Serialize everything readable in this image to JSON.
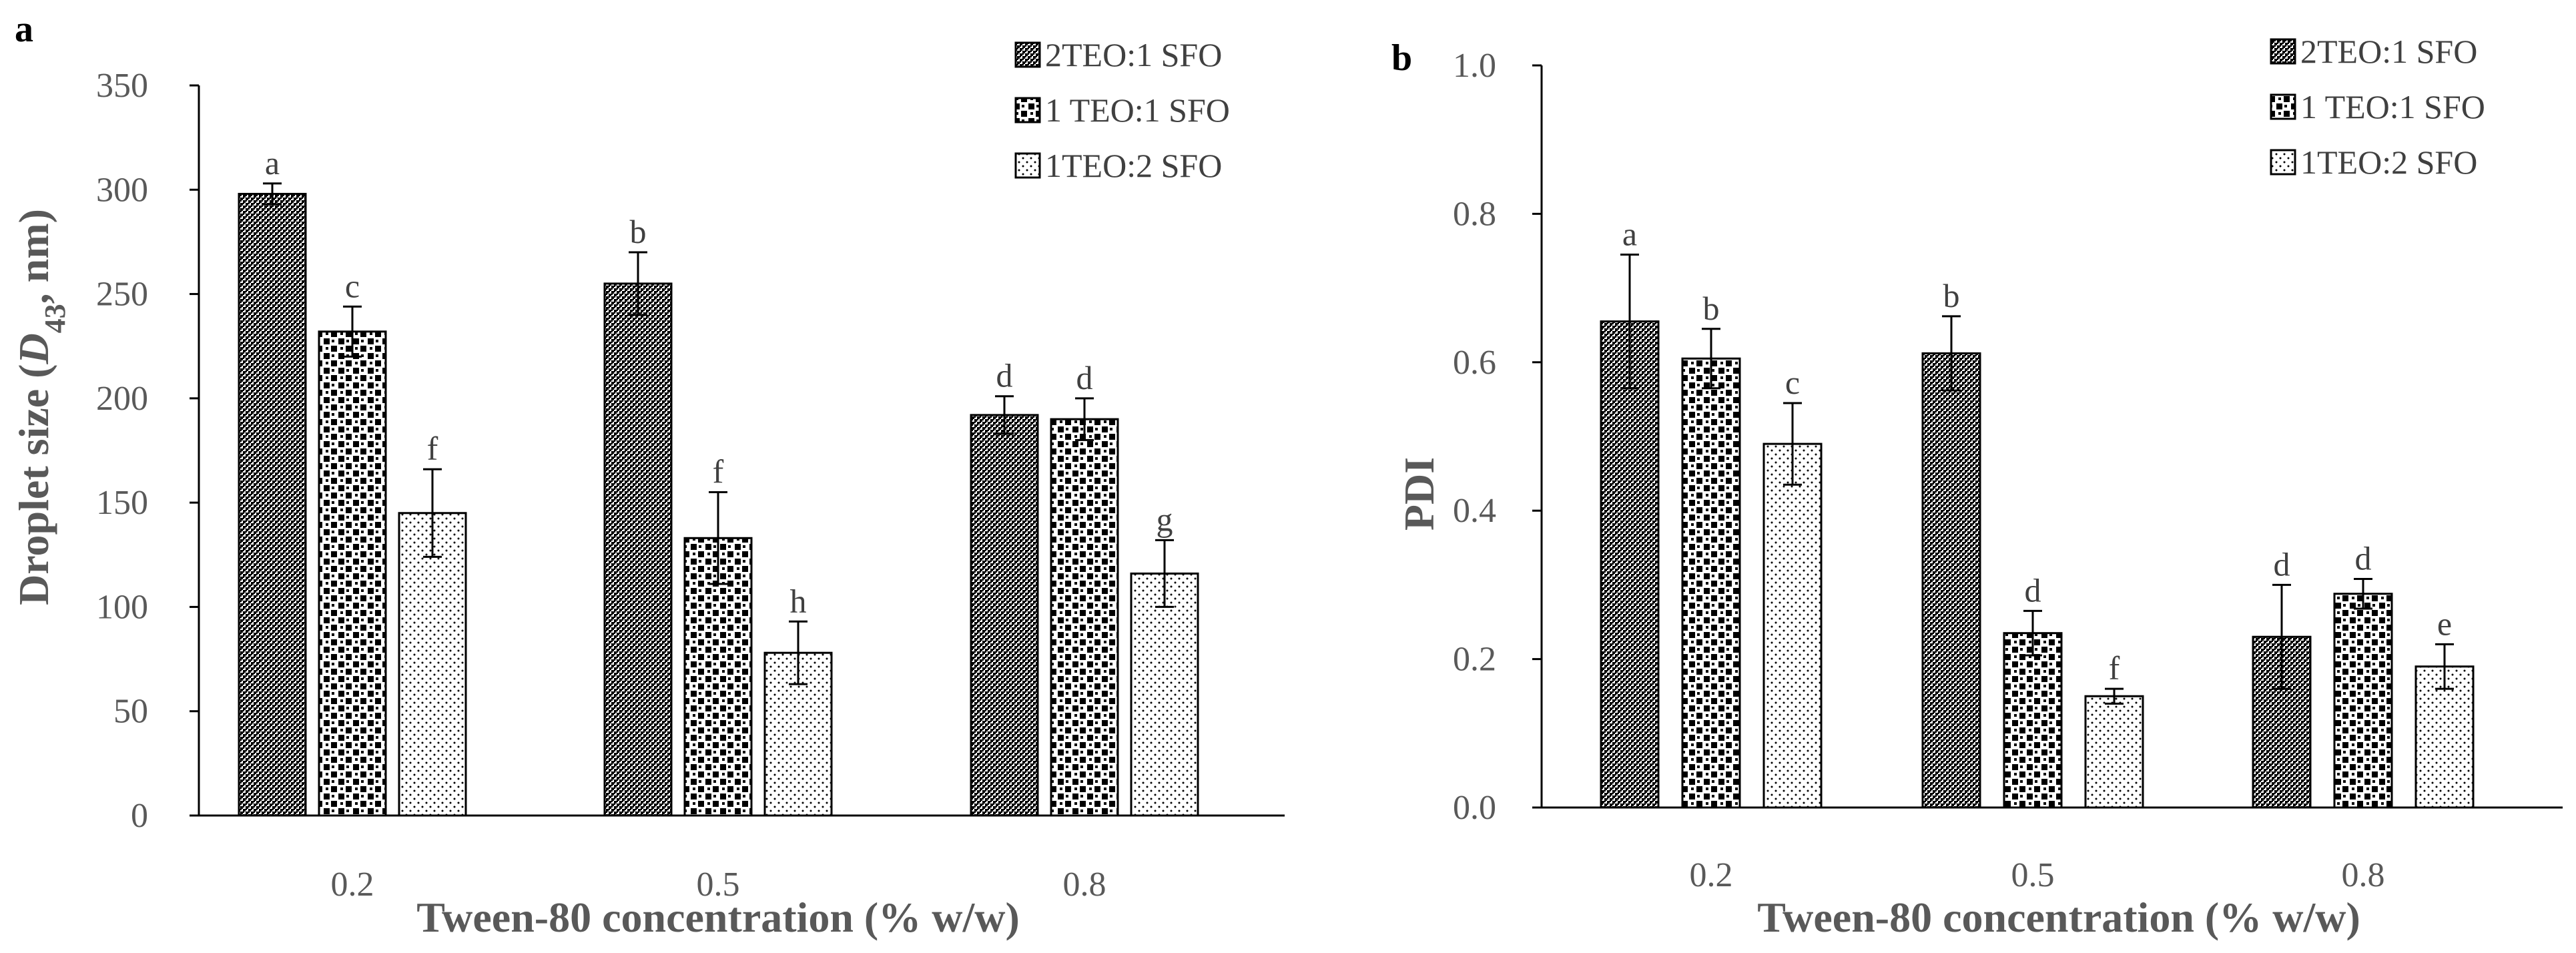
{
  "figure": {
    "x_title": "Tween-80 concentration (% w/w)"
  },
  "chart_data": [
    {
      "type": "bar",
      "panel_label": "a",
      "title": "",
      "xlabel": "Tween-80 concentration (% w/w)",
      "ylabel_prefix": "Droplet size (",
      "ylabel_symbol": "D",
      "ylabel_subscript": "43",
      "ylabel_suffix": ", nm)",
      "ylim": [
        0,
        350
      ],
      "yticks": [
        0,
        50,
        100,
        150,
        200,
        250,
        300,
        350
      ],
      "ytick_labels": [
        "0",
        "50",
        "100",
        "150",
        "200",
        "250",
        "300",
        "350"
      ],
      "categories": [
        "0.2",
        "0.5",
        "0.8"
      ],
      "series": [
        {
          "name": "2TEO:1 SFO",
          "pattern": "dense",
          "values": [
            298,
            255,
            192
          ],
          "errors": [
            5,
            15,
            9
          ],
          "letters": [
            "a",
            "b",
            "d"
          ]
        },
        {
          "name": "1 TEO:1 SFO",
          "pattern": "checker",
          "values": [
            232,
            133,
            190
          ],
          "errors": [
            12,
            22,
            10
          ],
          "letters": [
            "c",
            "f",
            "d"
          ]
        },
        {
          "name": "1TEO:2 SFO",
          "pattern": "dots",
          "values": [
            145,
            78,
            116
          ],
          "errors": [
            21,
            15,
            16
          ],
          "letters": [
            "f",
            "h",
            "g"
          ]
        }
      ],
      "legend_position": "top-right",
      "grid": false
    },
    {
      "type": "bar",
      "panel_label": "b",
      "title": "",
      "xlabel": "Tween-80 concentration (% w/w)",
      "ylabel": "PDI",
      "ylim": [
        0,
        1.0
      ],
      "yticks": [
        0,
        0.2,
        0.4,
        0.6,
        0.8,
        1.0
      ],
      "ytick_labels": [
        "0.0",
        "0.2",
        "0.4",
        "0.6",
        "0.8",
        "1.0"
      ],
      "categories": [
        "0.2",
        "0.5",
        "0.8"
      ],
      "series": [
        {
          "name": "2TEO:1 SFO",
          "pattern": "dense",
          "values": [
            0.655,
            0.612,
            0.23
          ],
          "errors": [
            0.09,
            0.05,
            0.07
          ],
          "letters": [
            "a",
            "b",
            "d"
          ]
        },
        {
          "name": "1 TEO:1 SFO",
          "pattern": "checker",
          "values": [
            0.605,
            0.235,
            0.288
          ],
          "errors": [
            0.04,
            0.03,
            0.02
          ],
          "letters": [
            "b",
            "d",
            "d"
          ]
        },
        {
          "name": "1TEO:2 SFO",
          "pattern": "dots",
          "values": [
            0.49,
            0.15,
            0.19
          ],
          "errors": [
            0.055,
            0.01,
            0.03
          ],
          "letters": [
            "c",
            "f",
            "e"
          ]
        }
      ],
      "legend_position": "top-right",
      "grid": false
    }
  ]
}
